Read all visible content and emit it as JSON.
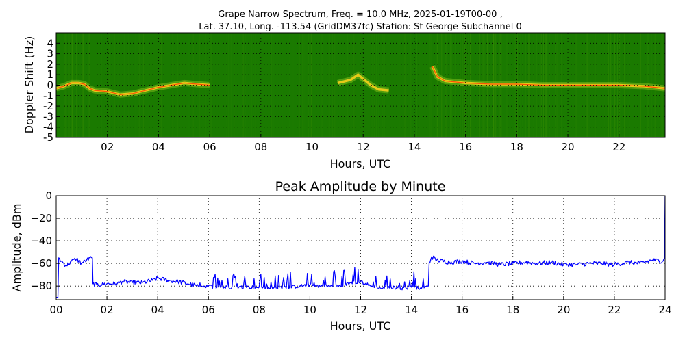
{
  "chart_data": [
    {
      "type": "heatmap",
      "title_line1": "Grape Narrow Spectrum, Freq. = 10.0 MHz, 2025-01-19T00-00 ,",
      "title_line2": "Lat.  37.10, Long. -113.54 (GridDM37fc) Station: St George Subchannel 0",
      "xlabel": "Hours, UTC",
      "ylabel": "Doppler Shift (Hz)",
      "xlim": [
        0,
        23.8
      ],
      "ylim": [
        -5,
        5
      ],
      "xticks": [
        2,
        4,
        6,
        8,
        10,
        12,
        14,
        16,
        18,
        20,
        22
      ],
      "xtick_labels": [
        "02",
        "04",
        "06",
        "08",
        "10",
        "12",
        "14",
        "16",
        "18",
        "20",
        "22"
      ],
      "yticks": [
        -5,
        -4,
        -3,
        -2,
        -1,
        0,
        1,
        2,
        3,
        4
      ],
      "ytick_labels": [
        "-5",
        "-4",
        "-3",
        "-2",
        "-1",
        "0",
        "1",
        "2",
        "3",
        "4"
      ],
      "grid": true,
      "colors": {
        "background": "#1a7a00",
        "signal_weak": "#b9e02a",
        "signal_strong": "#ffd21a",
        "signal_peak": "#ff3300"
      },
      "doppler_trace": {
        "x": [
          0.0,
          0.3,
          0.6,
          0.9,
          1.1,
          1.3,
          1.5,
          2.0,
          2.5,
          3.0,
          3.5,
          4.0,
          4.5,
          5.0,
          5.5,
          6.0,
          10.5,
          11.0,
          11.5,
          11.8,
          12.0,
          12.3,
          12.6,
          13.0,
          14.6,
          14.7,
          14.9,
          15.2,
          16.0,
          17.0,
          18.0,
          19.0,
          20.0,
          21.0,
          22.0,
          23.0,
          23.8
        ],
        "y": [
          -0.3,
          -0.1,
          0.2,
          0.2,
          0.1,
          -0.3,
          -0.5,
          -0.6,
          -0.9,
          -0.8,
          -0.5,
          -0.2,
          0.0,
          0.2,
          0.1,
          0.0,
          null,
          0.2,
          0.5,
          1.0,
          0.6,
          0.0,
          -0.4,
          -0.5,
          null,
          1.8,
          0.8,
          0.4,
          0.2,
          0.1,
          0.1,
          0.0,
          0.0,
          0.0,
          0.0,
          -0.1,
          -0.3
        ]
      }
    },
    {
      "type": "line",
      "title": "Peak Amplitude by Minute",
      "xlabel": "Hours, UTC",
      "ylabel": "Amplitude, dBm",
      "xlim": [
        0,
        24
      ],
      "ylim": [
        -92,
        0
      ],
      "xticks": [
        0,
        2,
        4,
        6,
        8,
        10,
        12,
        14,
        16,
        18,
        20,
        22,
        24
      ],
      "xtick_labels": [
        "00",
        "02",
        "04",
        "06",
        "08",
        "10",
        "12",
        "14",
        "16",
        "18",
        "20",
        "22",
        "24"
      ],
      "yticks": [
        0,
        -20,
        -40,
        -60,
        -80
      ],
      "ytick_labels": [
        "0",
        "−20",
        "−40",
        "−60",
        "−80"
      ],
      "grid": true,
      "line_color": "#0000ff",
      "x": [
        0.0,
        0.1,
        0.2,
        0.4,
        0.6,
        0.8,
        1.0,
        1.2,
        1.4,
        1.45,
        1.6,
        2.0,
        2.4,
        2.6,
        3.0,
        3.4,
        3.8,
        4.0,
        4.4,
        4.8,
        5.2,
        5.6,
        6.0,
        6.4,
        6.8,
        7.2,
        7.6,
        8.0,
        8.4,
        8.8,
        9.2,
        9.6,
        10.0,
        10.4,
        10.8,
        11.2,
        11.6,
        12.0,
        12.4,
        12.8,
        13.2,
        13.6,
        14.0,
        14.4,
        14.6,
        14.7,
        14.8,
        15.0,
        15.5,
        16.0,
        16.5,
        17.0,
        17.5,
        18.0,
        18.5,
        19.0,
        19.5,
        20.0,
        20.5,
        21.0,
        21.5,
        22.0,
        22.5,
        23.0,
        23.5,
        23.9,
        23.95,
        24.0
      ],
      "values": [
        -90,
        -55,
        -58,
        -62,
        -58,
        -56,
        -60,
        -57,
        -55,
        -78,
        -79,
        -78,
        -78,
        -76,
        -77,
        -77,
        -75,
        -73,
        -75,
        -76,
        -78,
        -80,
        -80,
        -81,
        -81,
        -81,
        -81,
        -81,
        -82,
        -81,
        -81,
        -80,
        -79,
        -80,
        -80,
        -80,
        -77,
        -76,
        -80,
        -82,
        -81,
        -82,
        -81,
        -82,
        -80,
        -60,
        -54,
        -57,
        -59,
        -58,
        -60,
        -59,
        -61,
        -60,
        -59,
        -60,
        -59,
        -61,
        -61,
        -60,
        -60,
        -61,
        -59,
        -60,
        -57,
        -58,
        -56,
        0
      ]
    }
  ]
}
